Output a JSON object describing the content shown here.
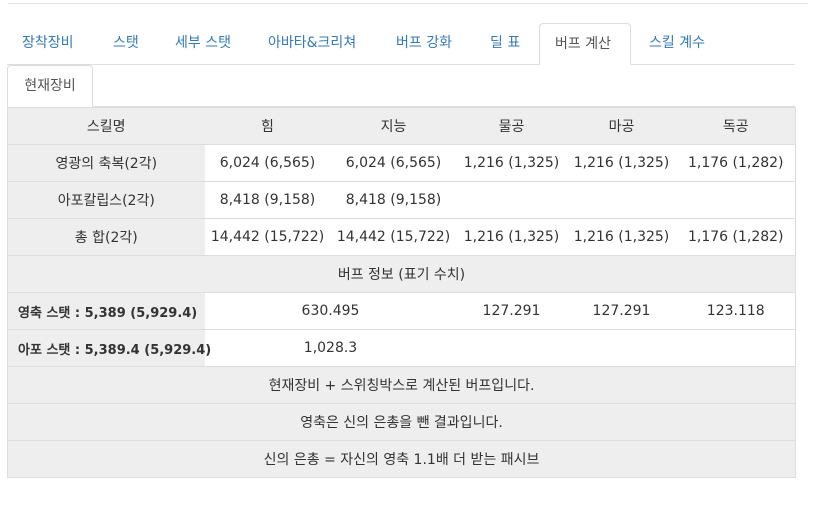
{
  "tabs": [
    {
      "label": "장착장비"
    },
    {
      "label": "스탯"
    },
    {
      "label": "세부 스탯"
    },
    {
      "label": "아바타&크리쳐"
    },
    {
      "label": "버프 강화"
    },
    {
      "label": "딜 표"
    },
    {
      "label": "버프 계산"
    },
    {
      "label": "스킬 계수"
    }
  ],
  "active_tab": "버프 계산",
  "subtab": {
    "label": "현재장비"
  },
  "table": {
    "headers": [
      "스킬명",
      "힘",
      "지능",
      "물공",
      "마공",
      "독공"
    ],
    "rows": [
      {
        "name": "영광의 축복(2각)",
        "str": "6,024 (6,565)",
        "int": "6,024 (6,565)",
        "patk": "1,216 (1,325)",
        "matk": "1,216 (1,325)",
        "iatk": "1,176 (1,282)"
      },
      {
        "name": "아포칼립스(2각)",
        "str": "8,418 (9,158)",
        "int": "8,418 (9,158)",
        "patk": "",
        "matk": "",
        "iatk": ""
      },
      {
        "name": "총 합(2각)",
        "str": "14,442 (15,722)",
        "int": "14,442 (15,722)",
        "patk": "1,216 (1,325)",
        "matk": "1,216 (1,325)",
        "iatk": "1,176 (1,282)"
      }
    ],
    "buff_info_title": "버프 정보 (표기 수치)",
    "info_rows": [
      {
        "label": "영축 스탯 : 5,389 (5,929.4)",
        "stat": "630.495",
        "patk": "127.291",
        "matk": "127.291",
        "iatk": "123.118"
      },
      {
        "label": "아포 스탯 : 5,389.4 (5,929.4)",
        "stat": "1,028.3",
        "patk": "",
        "matk": "",
        "iatk": ""
      }
    ],
    "notes": [
      "현재장비 + 스위칭박스로 계산된 버프입니다.",
      "영축은 신의 은총을 뺀 결과입니다.",
      "신의 은총 = 자신의 영축 1.1배 더 받는 패시브"
    ]
  }
}
